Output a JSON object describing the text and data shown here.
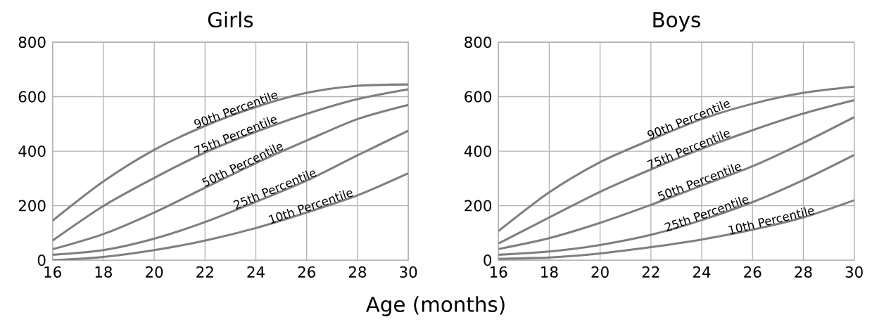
{
  "chart_data": [
    {
      "type": "line",
      "title": "Girls",
      "xlabel": "Age (months)",
      "x": [
        16,
        18,
        20,
        22,
        24,
        26,
        28,
        30
      ],
      "xlim": [
        16,
        30
      ],
      "xticks": [
        16,
        18,
        20,
        22,
        24,
        26,
        28,
        30
      ],
      "ylim": [
        0,
        800
      ],
      "yticks": [
        0,
        200,
        400,
        600,
        800
      ],
      "grid": true,
      "series": [
        {
          "name": "90th Percentile",
          "color": "#7f7f7f",
          "values": [
            145,
            289,
            405,
            493,
            562,
            614,
            640,
            645
          ]
        },
        {
          "name": "75th Percentile",
          "color": "#7f7f7f",
          "values": [
            72,
            199,
            302,
            395,
            471,
            537,
            591,
            627
          ]
        },
        {
          "name": "50th Percentile",
          "color": "#7f7f7f",
          "values": [
            40,
            96,
            175,
            266,
            356,
            439,
            518,
            570
          ]
        },
        {
          "name": "25th Percentile",
          "color": "#7f7f7f",
          "values": [
            20,
            37,
            79,
            140,
            214,
            292,
            385,
            475
          ]
        },
        {
          "name": "10th Percentile",
          "color": "#7f7f7f",
          "values": [
            0,
            12,
            37,
            72,
            118,
            175,
            238,
            319
          ]
        }
      ]
    },
    {
      "type": "line",
      "title": "Boys",
      "x": [
        16,
        18,
        20,
        22,
        24,
        26,
        28,
        30
      ],
      "xlim": [
        16,
        30
      ],
      "xticks": [
        16,
        18,
        20,
        22,
        24,
        26,
        28,
        30
      ],
      "ylim": [
        0,
        800
      ],
      "yticks": [
        0,
        200,
        400,
        600,
        800
      ],
      "grid": true,
      "series": [
        {
          "name": "90th Percentile",
          "color": "#7f7f7f",
          "values": [
            107,
            249,
            360,
            442,
            518,
            574,
            614,
            637
          ]
        },
        {
          "name": "75th Percentile",
          "color": "#7f7f7f",
          "values": [
            61,
            157,
            251,
            333,
            409,
            477,
            538,
            587
          ]
        },
        {
          "name": "50th Percentile",
          "color": "#7f7f7f",
          "values": [
            41,
            81,
            137,
            203,
            274,
            345,
            431,
            525
          ]
        },
        {
          "name": "25th Percentile",
          "color": "#7f7f7f",
          "values": [
            20,
            32,
            56,
            93,
            147,
            213,
            294,
            386
          ]
        },
        {
          "name": "10th Percentile",
          "color": "#7f7f7f",
          "values": [
            5,
            10,
            25,
            48,
            76,
            112,
            157,
            220
          ]
        }
      ]
    }
  ]
}
